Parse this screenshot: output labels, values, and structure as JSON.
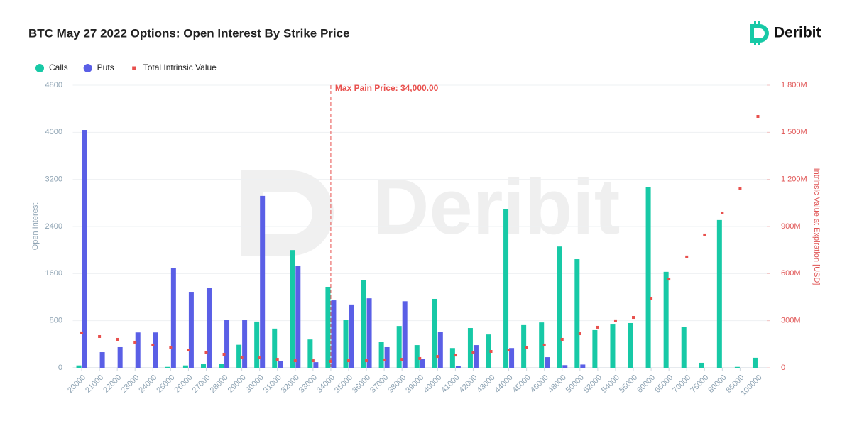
{
  "chart_data": {
    "type": "bar",
    "title": "BTC May 27 2022 Options: Open Interest By Strike Price",
    "logo_text": "Deribit",
    "y_label": "Open Interest",
    "y2_label": "Intrinsic Value at Expiration [USD]",
    "categories": [
      "20000",
      "21000",
      "22000",
      "23000",
      "24000",
      "25000",
      "26000",
      "27000",
      "28000",
      "29000",
      "30000",
      "31000",
      "32000",
      "33000",
      "34000",
      "35000",
      "36000",
      "37000",
      "38000",
      "39000",
      "40000",
      "41000",
      "42000",
      "43000",
      "44000",
      "45000",
      "46000",
      "48000",
      "50000",
      "52000",
      "54000",
      "55000",
      "60000",
      "65000",
      "70000",
      "75000",
      "80000",
      "85000",
      "100000"
    ],
    "series": [
      {
        "name": "Calls",
        "color": "#17c9a6",
        "values": [
          40,
          0,
          0,
          0,
          0,
          15,
          40,
          60,
          70,
          390,
          785,
          665,
          2000,
          480,
          1375,
          810,
          1495,
          445,
          710,
          385,
          1170,
          335,
          675,
          565,
          2700,
          725,
          770,
          2060,
          1845,
          640,
          735,
          760,
          3065,
          1630,
          690,
          85,
          2510,
          15,
          170
        ]
      },
      {
        "name": "Puts",
        "color": "#5a5fe6",
        "values": [
          4040,
          265,
          350,
          600,
          600,
          1700,
          1290,
          1360,
          810,
          810,
          2920,
          110,
          1725,
          95,
          1145,
          1075,
          1180,
          350,
          1130,
          145,
          615,
          25,
          385,
          0,
          335,
          0,
          180,
          45,
          55,
          0,
          0,
          0,
          0,
          0,
          0,
          0,
          0,
          0,
          0
        ]
      },
      {
        "name": "Total Intrinsic Value",
        "color": "#e8504d",
        "axis": "y2",
        "values": [
          222000000,
          199000000,
          181000000,
          163000000,
          145000000,
          127000000,
          113000000,
          95000000,
          86000000,
          68000000,
          63000000,
          54000000,
          45000000,
          45000000,
          41000000,
          45000000,
          45000000,
          50000000,
          54000000,
          59000000,
          72000000,
          81000000,
          95000000,
          104000000,
          113000000,
          131000000,
          145000000,
          181000000,
          217000000,
          258000000,
          299000000,
          321000000,
          439000000,
          565000000,
          706000000,
          846000000,
          986000000,
          1140000000,
          1601000000
        ]
      }
    ],
    "ylim": [
      0,
      4800
    ],
    "yticks": [
      0,
      800,
      1600,
      2400,
      3200,
      4000,
      4800
    ],
    "y2lim": [
      0,
      1800000000
    ],
    "y2ticks": [
      0,
      {
        "value": 300000000,
        "label": "300M"
      },
      {
        "value": 600000000,
        "label": "600M"
      },
      {
        "value": 900000000,
        "label": "900M"
      },
      {
        "value": 1200000000,
        "label": "1 200M"
      },
      {
        "value": 1500000000,
        "label": "1 500M"
      },
      {
        "value": 1800000000,
        "label": "1 800M"
      }
    ],
    "grid": true,
    "legend": "top-left",
    "annotation": {
      "text": "Max Pain Price: 34,000.00",
      "x": "34000",
      "color": "#e8504d"
    }
  }
}
